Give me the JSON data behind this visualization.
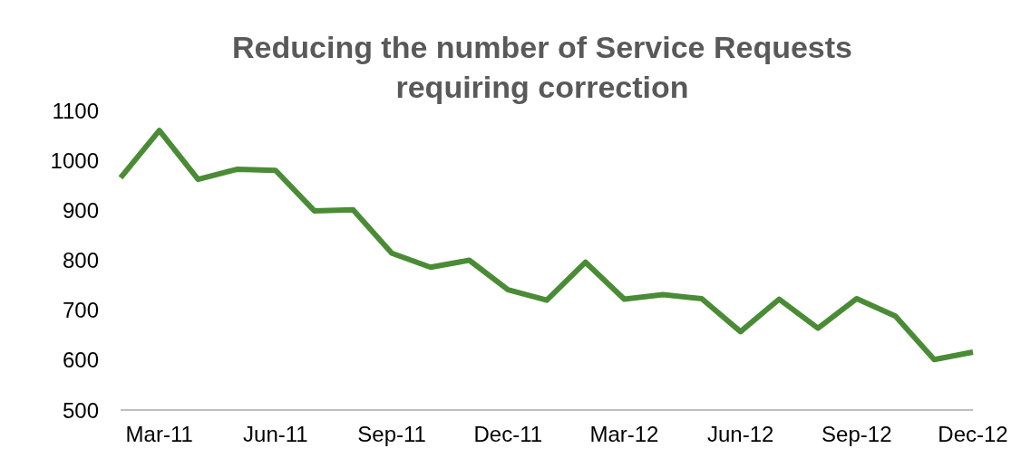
{
  "chart_data": {
    "type": "line",
    "title": "Reducing the number of Service Requests requiring correction",
    "categories": [
      null,
      "Mar-11",
      null,
      null,
      "Jun-11",
      null,
      null,
      "Sep-11",
      null,
      null,
      "Dec-11",
      null,
      null,
      "Mar-12",
      null,
      null,
      "Jun-12",
      null,
      null,
      "Sep-12",
      null,
      null,
      "Dec-12"
    ],
    "series": [
      {
        "color": "#4a8c35",
        "values": [
          965,
          1060,
          962,
          982,
          980,
          899,
          901,
          814,
          786,
          800,
          741,
          720,
          796,
          722,
          731,
          723,
          657,
          722,
          664,
          723,
          688,
          601,
          616
        ]
      }
    ],
    "ylim": [
      500,
      1100
    ],
    "yticks": [
      500,
      600,
      700,
      800,
      900,
      1000,
      1100
    ],
    "grid": false,
    "marker": "none",
    "line_style": "solid"
  }
}
